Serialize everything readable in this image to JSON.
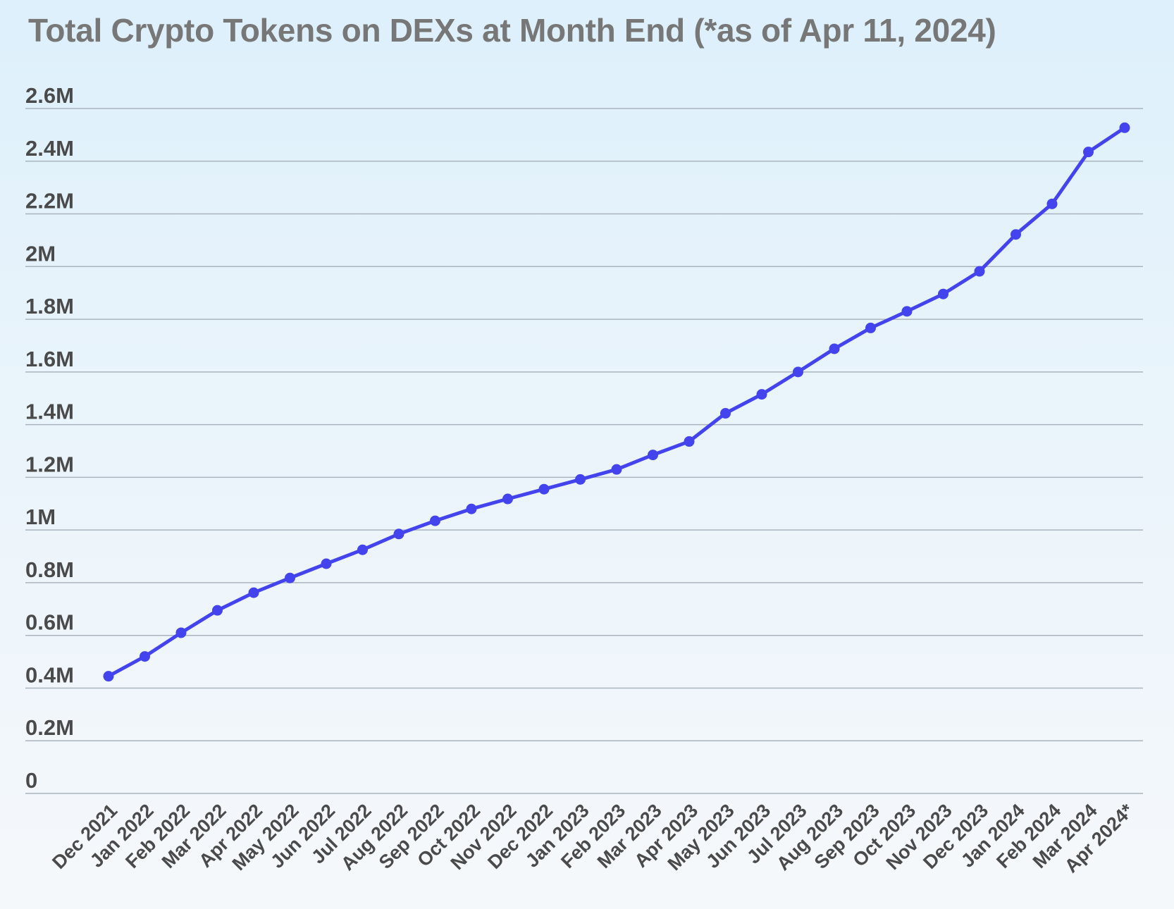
{
  "chart_data": {
    "type": "line",
    "title": "Total Crypto Tokens on DEXs at Month End (*as of Apr 11, 2024)",
    "xlabel": "",
    "ylabel": "",
    "ylim": [
      0,
      2600000
    ],
    "y_ticks": [
      0,
      200000,
      400000,
      600000,
      800000,
      1000000,
      1200000,
      1400000,
      1600000,
      1800000,
      2000000,
      2200000,
      2400000,
      2600000
    ],
    "y_tick_labels": [
      "0",
      "0.2M",
      "0.4M",
      "0.6M",
      "0.8M",
      "1M",
      "1.2M",
      "1.4M",
      "1.6M",
      "1.8M",
      "2M",
      "2.2M",
      "2.4M",
      "2.6M"
    ],
    "grid": "horizontal",
    "legend": "none",
    "categories": [
      "Dec 2021",
      "Jan 2022",
      "Feb 2022",
      "Mar 2022",
      "Apr 2022",
      "May 2022",
      "Jun 2022",
      "Jul 2022",
      "Aug 2022",
      "Sep 2022",
      "Oct 2022",
      "Nov 2022",
      "Dec 2022",
      "Jan 2023",
      "Feb 2023",
      "Mar 2023",
      "Apr 2023",
      "May 2023",
      "Jun 2023",
      "Jul 2023",
      "Aug 2023",
      "Sep 2023",
      "Oct 2023",
      "Nov 2023",
      "Dec 2023",
      "Jan 2024",
      "Feb 2024",
      "Mar 2024",
      "Apr 2024*"
    ],
    "series": [
      {
        "values": [
          445000,
          520000,
          610000,
          695000,
          762000,
          818000,
          872000,
          925000,
          985000,
          1035000,
          1080000,
          1118000,
          1155000,
          1192000,
          1230000,
          1285000,
          1336000,
          1443000,
          1515000,
          1600000,
          1688000,
          1767000,
          1830000,
          1896000,
          1982000,
          2122000,
          2238000,
          2435000,
          2527000
        ]
      }
    ],
    "colors": {
      "line": "#4444ee",
      "grid": "#aab4bf",
      "tick_text": "#4a4a4a",
      "title": "#777777"
    }
  }
}
